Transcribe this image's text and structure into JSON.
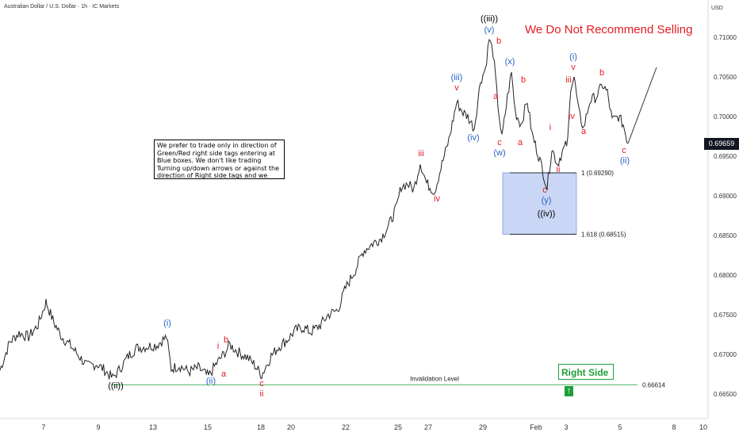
{
  "header": {
    "title": "Australian Dollar / U.S. Dollar · 1h · IC Markets"
  },
  "banner": {
    "text": "We Do Not Recommend Selling"
  },
  "note": {
    "text": "We prefer to trade only in direction of Green/Red right side tags entering at Blue boxes. We don't like trading Turning up/down arrows or against the direction of Right side tags and we don't like trading the dotted lines."
  },
  "right_side": {
    "label": "Right Side",
    "arrow": "↑",
    "color": "#1e9e3a"
  },
  "price_axis": {
    "currency": "USD",
    "last_price": "0.69659"
  },
  "colors": {
    "blue": "#2962c8",
    "red": "#e31b23",
    "green": "#1e9e3a",
    "box": "#c9d6f5"
  },
  "chart_data": {
    "type": "line",
    "title": "Australian Dollar / U.S. Dollar · 1h · IC Markets",
    "ylim": [
      0.6648,
      0.714
    ],
    "y_ticks": [
      "0.71000",
      "0.70500",
      "0.70000",
      "0.69500",
      "0.69000",
      "0.68500",
      "0.68000",
      "0.67500",
      "0.67000",
      "0.66500"
    ],
    "y_tick_values": [
      0.71,
      0.705,
      0.7,
      0.695,
      0.69,
      0.685,
      0.68,
      0.675,
      0.67,
      0.665
    ],
    "xlim": [
      0,
      1000
    ],
    "x_ticks": [
      {
        "label": "7",
        "x": 55
      },
      {
        "label": "9",
        "x": 124
      },
      {
        "label": "13",
        "x": 193
      },
      {
        "label": "15",
        "x": 262
      },
      {
        "label": "18",
        "x": 329
      },
      {
        "label": "20",
        "x": 367
      },
      {
        "label": "22",
        "x": 436
      },
      {
        "label": "25",
        "x": 502
      },
      {
        "label": "27",
        "x": 540
      },
      {
        "label": "29",
        "x": 609
      },
      {
        "label": "Feb",
        "x": 676
      },
      {
        "label": "3",
        "x": 714
      },
      {
        "label": "5",
        "x": 782
      },
      {
        "label": "8",
        "x": 850
      },
      {
        "label": "10",
        "x": 887
      }
    ],
    "series": [
      {
        "name": "AUD/USD",
        "points": [
          [
            0,
            0.668
          ],
          [
            12,
            0.6715
          ],
          [
            24,
            0.6727
          ],
          [
            36,
            0.6722
          ],
          [
            48,
            0.6737
          ],
          [
            58,
            0.6766
          ],
          [
            68,
            0.674
          ],
          [
            78,
            0.6722
          ],
          [
            88,
            0.6712
          ],
          [
            98,
            0.67
          ],
          [
            110,
            0.6685
          ],
          [
            122,
            0.6688
          ],
          [
            132,
            0.668
          ],
          [
            142,
            0.667
          ],
          [
            150,
            0.668
          ],
          [
            162,
            0.6698
          ],
          [
            172,
            0.6708
          ],
          [
            186,
            0.671
          ],
          [
            198,
            0.6712
          ],
          [
            210,
            0.6722
          ],
          [
            216,
            0.6682
          ],
          [
            226,
            0.6686
          ],
          [
            238,
            0.6678
          ],
          [
            250,
            0.6683
          ],
          [
            263,
            0.6672
          ],
          [
            272,
            0.6687
          ],
          [
            282,
            0.67
          ],
          [
            290,
            0.6712
          ],
          [
            300,
            0.6703
          ],
          [
            312,
            0.6696
          ],
          [
            320,
            0.6688
          ],
          [
            330,
            0.6674
          ],
          [
            342,
            0.6698
          ],
          [
            352,
            0.671
          ],
          [
            362,
            0.6718
          ],
          [
            372,
            0.673
          ],
          [
            382,
            0.6734
          ],
          [
            392,
            0.6728
          ],
          [
            404,
            0.6737
          ],
          [
            414,
            0.675
          ],
          [
            426,
            0.6756
          ],
          [
            436,
            0.6784
          ],
          [
            448,
            0.6806
          ],
          [
            458,
            0.683
          ],
          [
            470,
            0.684
          ],
          [
            480,
            0.6846
          ],
          [
            490,
            0.6862
          ],
          [
            500,
            0.6885
          ],
          [
            506,
            0.6912
          ],
          [
            514,
            0.6915
          ],
          [
            522,
            0.6908
          ],
          [
            530,
            0.6942
          ],
          [
            538,
            0.6916
          ],
          [
            548,
            0.6905
          ],
          [
            556,
            0.6935
          ],
          [
            566,
            0.697
          ],
          [
            576,
            0.7018
          ],
          [
            584,
            0.7005
          ],
          [
            590,
            0.7
          ],
          [
            598,
            0.6985
          ],
          [
            606,
            0.7045
          ],
          [
            612,
            0.706
          ],
          [
            617,
            0.7098
          ],
          [
            622,
            0.708
          ],
          [
            628,
            0.7015
          ],
          [
            633,
            0.6972
          ],
          [
            640,
            0.7025
          ],
          [
            645,
            0.7055
          ],
          [
            650,
            0.7005
          ],
          [
            657,
            0.699
          ],
          [
            665,
            0.702
          ],
          [
            671,
            0.6978
          ],
          [
            678,
            0.6955
          ],
          [
            685,
            0.693
          ],
          [
            690,
            0.691
          ],
          [
            696,
            0.696
          ],
          [
            703,
            0.694
          ],
          [
            709,
            0.6955
          ],
          [
            716,
            0.6968
          ],
          [
            720,
            0.704
          ],
          [
            724,
            0.705
          ],
          [
            730,
            0.7005
          ],
          [
            736,
            0.6985
          ],
          [
            744,
            0.702
          ],
          [
            752,
            0.7025
          ],
          [
            760,
            0.704
          ],
          [
            766,
            0.703
          ],
          [
            772,
            0.6995
          ],
          [
            780,
            0.7
          ],
          [
            786,
            0.699
          ],
          [
            792,
            0.6966
          ]
        ]
      }
    ],
    "projection": [
      [
        792,
        0.6966
      ],
      [
        828,
        0.7062
      ]
    ],
    "levels": [
      {
        "label": "1 (0.69290)",
        "value": 0.6929,
        "x_start": 643,
        "x_end": 727
      },
      {
        "label": "1.618 (0.68515)",
        "value": 0.68515,
        "x_start": 643,
        "x_end": 727
      },
      {
        "label": "0.66614",
        "value": 0.66614,
        "x_start": 140,
        "x_end": 804
      }
    ],
    "blue_box": {
      "x0": 634,
      "x1": 727,
      "y0": 0.6929,
      "y1": 0.68515
    },
    "invalidation": {
      "label": "Invalidation Level",
      "x": 548,
      "value": 0.66614
    },
    "annotations": [
      {
        "text": "((iii))",
        "x": 617,
        "y": 0.712,
        "color": "#000000"
      },
      {
        "text": "(v)",
        "x": 617,
        "y": 0.7106,
        "color": "#2962c8"
      },
      {
        "text": "b",
        "x": 629,
        "y": 0.7092,
        "color": "#e31b23"
      },
      {
        "text": "(x)",
        "x": 643,
        "y": 0.7066,
        "color": "#2962c8"
      },
      {
        "text": "(i)",
        "x": 723,
        "y": 0.7072,
        "color": "#2962c8"
      },
      {
        "text": "v",
        "x": 723,
        "y": 0.7059,
        "color": "#e31b23"
      },
      {
        "text": "iii",
        "x": 717,
        "y": 0.7043,
        "color": "#e31b23"
      },
      {
        "text": "b",
        "x": 759,
        "y": 0.7052,
        "color": "#e31b23"
      },
      {
        "text": "b",
        "x": 660,
        "y": 0.7043,
        "color": "#e31b23"
      },
      {
        "text": "(iii)",
        "x": 576,
        "y": 0.7046,
        "color": "#2962c8"
      },
      {
        "text": "v",
        "x": 576,
        "y": 0.7033,
        "color": "#e31b23"
      },
      {
        "text": "a",
        "x": 625,
        "y": 0.7022,
        "color": "#e31b23"
      },
      {
        "text": "iv",
        "x": 721,
        "y": 0.6997,
        "color": "#e31b23"
      },
      {
        "text": "i",
        "x": 694,
        "y": 0.6983,
        "color": "#e31b23"
      },
      {
        "text": "a",
        "x": 736,
        "y": 0.6978,
        "color": "#e31b23"
      },
      {
        "text": "(iv)",
        "x": 597,
        "y": 0.697,
        "color": "#2962c8"
      },
      {
        "text": "c",
        "x": 630,
        "y": 0.6964,
        "color": "#e31b23"
      },
      {
        "text": "a",
        "x": 656,
        "y": 0.6964,
        "color": "#e31b23"
      },
      {
        "text": "(w)",
        "x": 630,
        "y": 0.6951,
        "color": "#2962c8"
      },
      {
        "text": "c",
        "x": 787,
        "y": 0.6954,
        "color": "#e31b23"
      },
      {
        "text": "(ii)",
        "x": 788,
        "y": 0.6941,
        "color": "#2962c8"
      },
      {
        "text": "iii",
        "x": 531,
        "y": 0.695,
        "color": "#e31b23"
      },
      {
        "text": "ii",
        "x": 704,
        "y": 0.693,
        "color": "#e31b23"
      },
      {
        "text": "c",
        "x": 687,
        "y": 0.6904,
        "color": "#e31b23"
      },
      {
        "text": "(y)",
        "x": 689,
        "y": 0.6891,
        "color": "#2962c8"
      },
      {
        "text": "iv",
        "x": 551,
        "y": 0.6893,
        "color": "#e31b23"
      },
      {
        "text": "((iv))",
        "x": 689,
        "y": 0.6874,
        "color": "#000000"
      },
      {
        "text": "(i)",
        "x": 211,
        "y": 0.6736,
        "color": "#2962c8"
      },
      {
        "text": "b",
        "x": 285,
        "y": 0.6715,
        "color": "#e31b23"
      },
      {
        "text": "i",
        "x": 275,
        "y": 0.6707,
        "color": "#e31b23"
      },
      {
        "text": "a",
        "x": 282,
        "y": 0.6672,
        "color": "#e31b23"
      },
      {
        "text": "(ii)",
        "x": 266,
        "y": 0.6663,
        "color": "#2962c8"
      },
      {
        "text": "c",
        "x": 330,
        "y": 0.666,
        "color": "#e31b23"
      },
      {
        "text": "ii",
        "x": 330,
        "y": 0.6647,
        "color": "#e31b23"
      },
      {
        "text": "((ii))",
        "x": 146,
        "y": 0.6657,
        "color": "#000000"
      }
    ]
  }
}
